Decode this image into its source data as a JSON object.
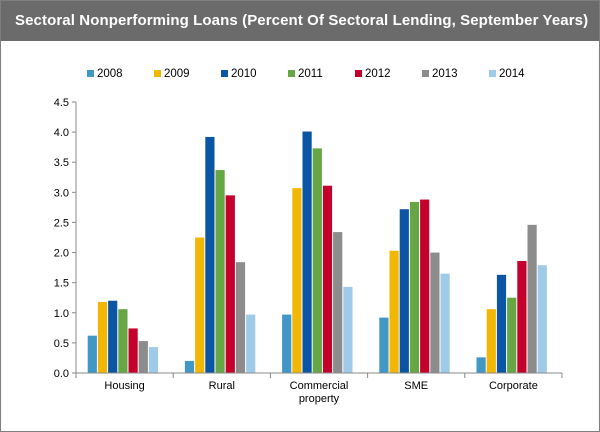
{
  "chart_data": {
    "type": "bar",
    "title": "Sectoral Nonperforming Loans (Percent Of Sectoral Lending, September Years)",
    "categories": [
      [
        "Housing"
      ],
      [
        "Rural"
      ],
      [
        "Commercial",
        "property"
      ],
      [
        "SME"
      ],
      [
        "Corporate"
      ]
    ],
    "series": [
      {
        "name": "2008",
        "color": "#4197c6",
        "values": [
          0.62,
          0.2,
          0.97,
          0.92,
          0.26
        ]
      },
      {
        "name": "2009",
        "color": "#f2b705",
        "values": [
          1.18,
          2.25,
          3.07,
          2.03,
          1.06
        ]
      },
      {
        "name": "2010",
        "color": "#0b56a4",
        "values": [
          1.2,
          3.92,
          4.01,
          2.72,
          1.63
        ]
      },
      {
        "name": "2011",
        "color": "#67a644",
        "values": [
          1.06,
          3.37,
          3.73,
          2.84,
          1.25
        ]
      },
      {
        "name": "2012",
        "color": "#c4002c",
        "values": [
          0.74,
          2.95,
          3.11,
          2.88,
          1.86
        ]
      },
      {
        "name": "2013",
        "color": "#8c8c8c",
        "values": [
          0.53,
          1.84,
          2.34,
          2.0,
          2.46
        ]
      },
      {
        "name": "2014",
        "color": "#9fcbe9",
        "values": [
          0.43,
          0.97,
          1.43,
          1.65,
          1.79
        ]
      }
    ],
    "yticks": [
      "0.0",
      "0.5",
      "1.0",
      "1.5",
      "2.0",
      "2.5",
      "3.0",
      "3.5",
      "4.0",
      "4.5"
    ],
    "ylim": [
      0,
      4.5
    ],
    "legend_position": "top",
    "grid": false
  }
}
